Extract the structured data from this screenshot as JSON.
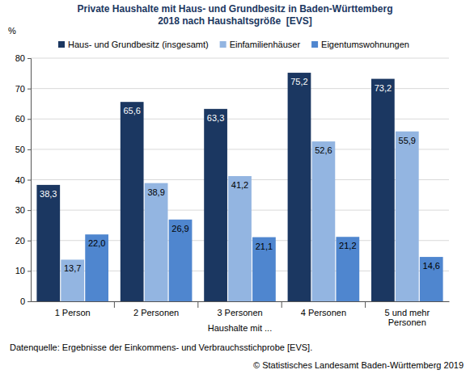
{
  "chart_data": {
    "type": "bar",
    "title": "Private Haushalte mit Haus- und Grundbesitz in Baden-Württemberg",
    "subtitle": "2018 nach Haushaltsgröße  [EVS]",
    "y_label": "%",
    "x_label": "Haushalte mit ...",
    "categories": [
      "1 Person",
      "2 Personen",
      "3 Personen",
      "4 Personen",
      "5 und mehr Personen"
    ],
    "series": [
      {
        "name": "Haus- und Grundbesitz (insgesamt)",
        "color": "#1b3761",
        "values": [
          38.3,
          65.6,
          63.3,
          75.2,
          73.2
        ],
        "value_labels": [
          "38,3",
          "65,6",
          "63,3",
          "75,2",
          "73,2"
        ]
      },
      {
        "name": "Einfamilienhäuser",
        "color": "#93b5e1",
        "values": [
          13.7,
          38.9,
          41.2,
          52.6,
          55.9
        ],
        "value_labels": [
          "13,7",
          "38,9",
          "41,2",
          "52,6",
          "55,9"
        ]
      },
      {
        "name": "Eigentumswohnungen",
        "color": "#4f86cf",
        "values": [
          22.0,
          26.9,
          21.1,
          21.2,
          14.6
        ],
        "value_labels": [
          "22,0",
          "26,9",
          "21,1",
          "21,2",
          "14,6"
        ]
      }
    ],
    "ylim": [
      0,
      80
    ],
    "yticks": [
      0,
      10,
      20,
      30,
      40,
      50,
      60,
      70,
      80
    ],
    "grid": true,
    "legend": "top",
    "data_labels": true,
    "annotations": [
      "Datenquelle: Ergebnisse der Einkommens- und Verbrauchsstichprobe [EVS].",
      "© Statistisches Landesamt Baden-Württemberg 2019"
    ]
  }
}
